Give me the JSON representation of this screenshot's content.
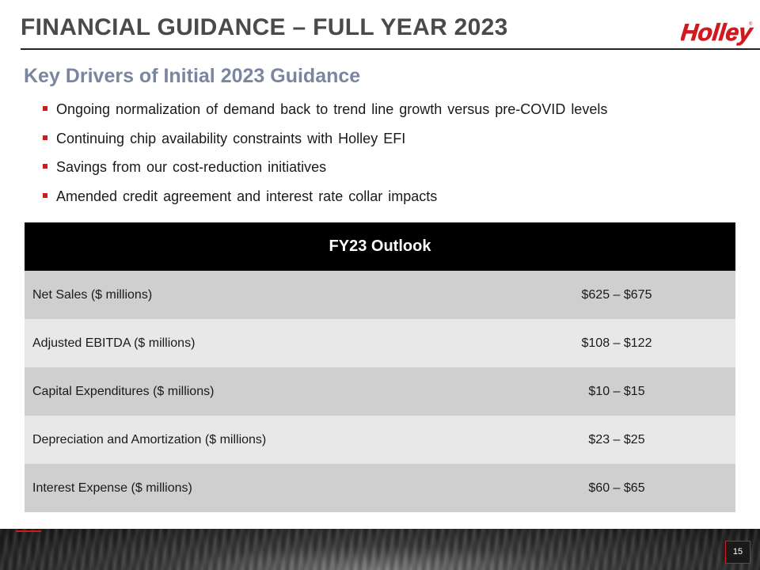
{
  "slide": {
    "title": "FINANCIAL GUIDANCE – FULL YEAR 2023",
    "logo_text": "Holley",
    "subtitle": "Key Drivers of Initial 2023 Guidance",
    "bullets": [
      "Ongoing normalization of demand back to trend line growth versus pre-COVID levels",
      "Continuing chip availability constraints with Holley EFI",
      "Savings from our cost-reduction initiatives",
      "Amended credit agreement and interest rate collar impacts"
    ],
    "page_number": "15"
  },
  "table": {
    "header": "FY23 Outlook",
    "rows": [
      {
        "label": "Net Sales ($ millions)",
        "value": "$625 – $675"
      },
      {
        "label": "Adjusted EBITDA ($ millions)",
        "value": "$108 – $122"
      },
      {
        "label": "Capital Expenditures ($ millions)",
        "value": "$10 – $15"
      },
      {
        "label": "Depreciation and Amortization ($ millions)",
        "value": "$23 – $25"
      },
      {
        "label": "Interest Expense ($ millions)",
        "value": "$60 – $65"
      }
    ]
  },
  "colors": {
    "accent_red": "#d01a1f",
    "subtitle_blue_gray": "#7a86a0",
    "title_gray": "#4a4a4a"
  }
}
